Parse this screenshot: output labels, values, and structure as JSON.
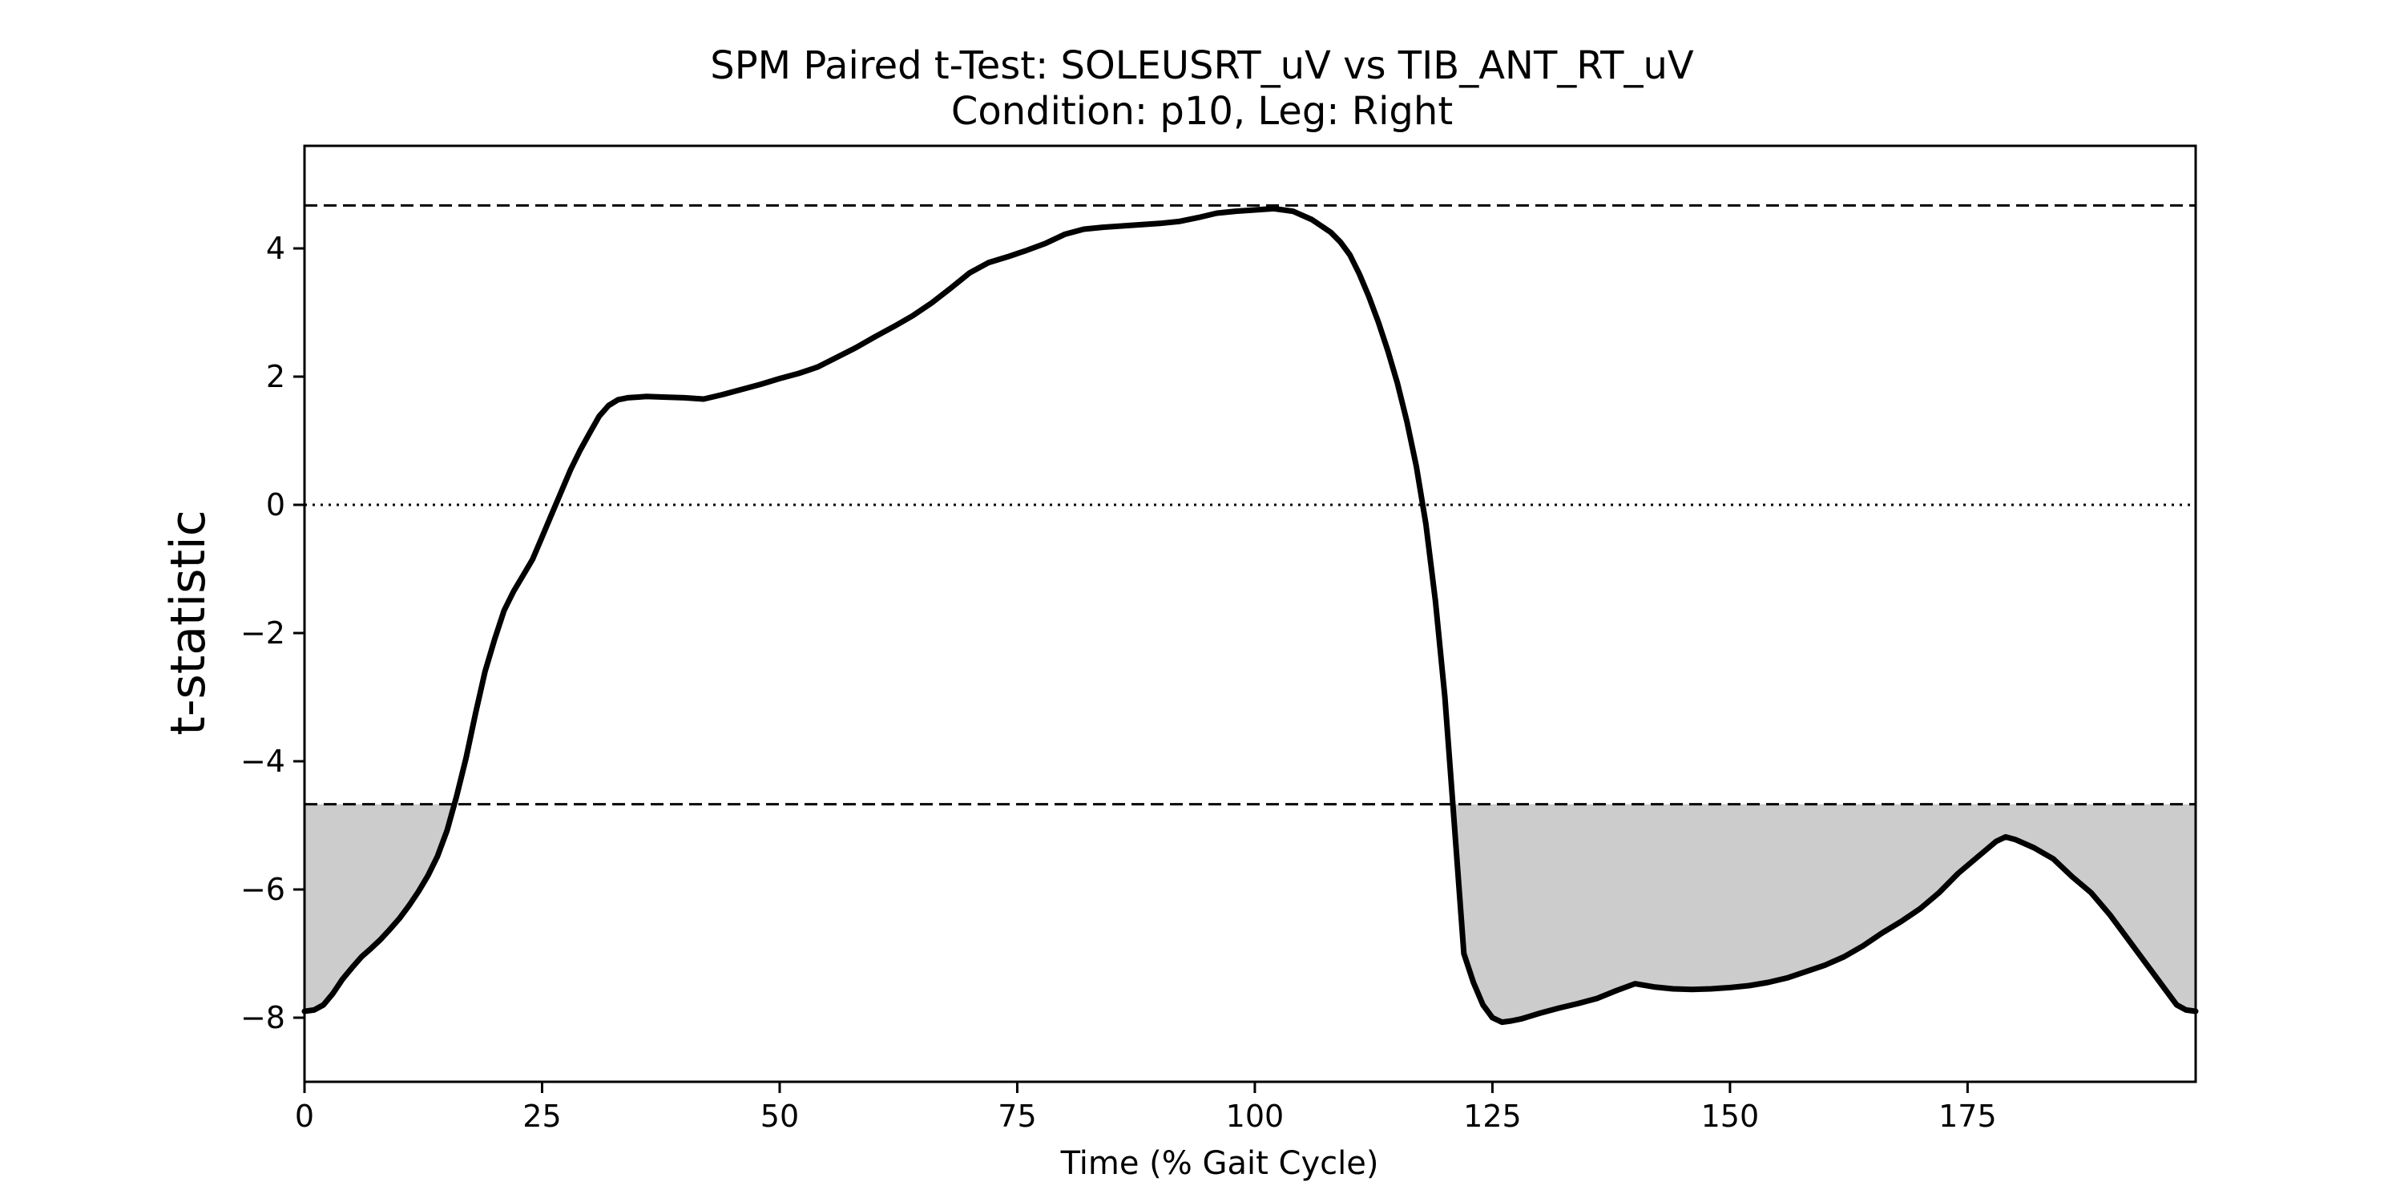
{
  "chart_data": {
    "type": "line",
    "title": "SPM Paired t-Test: SOLEUSRT_uV vs TIB_ANT_RT_uV",
    "subtitle": "Condition: p10, Leg: Right",
    "xlabel": "Time (% Gait Cycle)",
    "ylabel": "t-statistic",
    "xlim": [
      0,
      199
    ],
    "ylim": [
      -9,
      5.6
    ],
    "xticks": [
      0,
      25,
      50,
      75,
      100,
      125,
      150,
      175
    ],
    "yticks": [
      -8,
      -6,
      -4,
      -2,
      0,
      2,
      4
    ],
    "grid": false,
    "threshold_upper": 4.67,
    "threshold_lower": -4.67,
    "zero_line": 0,
    "fill_color": "#cccccc",
    "line_color": "#000000",
    "series": [
      {
        "x": [
          0,
          1,
          2,
          3,
          4,
          5,
          6,
          7,
          8,
          9,
          10,
          11,
          12,
          13,
          14,
          15,
          16,
          17,
          18,
          19,
          20,
          21,
          22,
          23,
          24,
          25,
          26,
          27,
          28,
          29,
          30,
          31,
          32,
          33,
          34,
          35,
          36,
          38,
          40,
          42,
          44,
          46,
          48,
          50,
          52,
          54,
          56,
          58,
          60,
          62,
          64,
          66,
          68,
          70,
          72,
          74,
          76,
          78,
          80,
          82,
          84,
          86,
          88,
          90,
          92,
          94,
          96,
          98,
          100,
          102,
          104,
          106,
          108,
          109,
          110,
          111,
          112,
          113,
          114,
          115,
          116,
          117,
          118,
          119,
          120,
          121,
          122,
          123,
          124,
          125,
          126,
          127,
          128,
          130,
          132,
          134,
          136,
          138,
          140,
          142,
          144,
          146,
          148,
          150,
          152,
          154,
          156,
          158,
          160,
          162,
          164,
          166,
          168,
          170,
          172,
          174,
          176,
          178,
          179,
          180,
          182,
          184,
          186,
          188,
          190,
          192,
          194,
          196,
          197,
          198,
          199
        ],
        "y": [
          -7.9,
          -7.88,
          -7.8,
          -7.62,
          -7.4,
          -7.22,
          -7.05,
          -6.92,
          -6.78,
          -6.62,
          -6.45,
          -6.25,
          -6.03,
          -5.78,
          -5.48,
          -5.08,
          -4.55,
          -3.95,
          -3.25,
          -2.6,
          -2.1,
          -1.65,
          -1.35,
          -1.1,
          -0.85,
          -0.5,
          -0.15,
          0.2,
          0.55,
          0.85,
          1.12,
          1.38,
          1.55,
          1.64,
          1.67,
          1.68,
          1.69,
          1.68,
          1.67,
          1.65,
          1.72,
          1.8,
          1.88,
          1.97,
          2.05,
          2.15,
          2.3,
          2.45,
          2.62,
          2.78,
          2.95,
          3.15,
          3.38,
          3.62,
          3.78,
          3.87,
          3.97,
          4.08,
          4.22,
          4.3,
          4.33,
          4.35,
          4.37,
          4.39,
          4.42,
          4.48,
          4.55,
          4.58,
          4.6,
          4.62,
          4.58,
          4.45,
          4.25,
          4.1,
          3.9,
          3.6,
          3.25,
          2.85,
          2.4,
          1.9,
          1.3,
          0.6,
          -0.3,
          -1.5,
          -3.0,
          -5.0,
          -7.0,
          -7.45,
          -7.8,
          -8.0,
          -8.07,
          -8.05,
          -8.02,
          -7.93,
          -7.85,
          -7.78,
          -7.7,
          -7.58,
          -7.47,
          -7.52,
          -7.55,
          -7.56,
          -7.55,
          -7.53,
          -7.5,
          -7.45,
          -7.38,
          -7.28,
          -7.18,
          -7.05,
          -6.88,
          -6.68,
          -6.5,
          -6.3,
          -6.05,
          -5.75,
          -5.5,
          -5.25,
          -5.18,
          -5.22,
          -5.35,
          -5.52,
          -5.8,
          -6.05,
          -6.4,
          -6.8,
          -7.2,
          -7.6,
          -7.8,
          -7.88,
          -7.9
        ]
      }
    ]
  }
}
